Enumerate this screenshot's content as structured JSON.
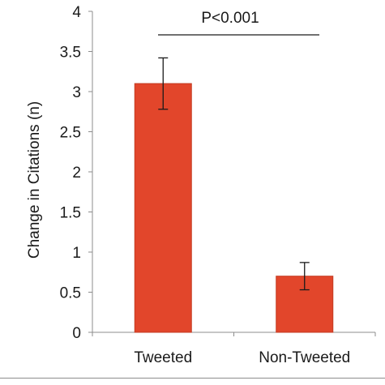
{
  "chart_data": {
    "type": "bar",
    "categories": [
      "Tweeted",
      "Non-Tweeted"
    ],
    "values": [
      3.1,
      0.7
    ],
    "error_low": [
      2.78,
      0.53
    ],
    "error_high": [
      3.42,
      0.87
    ],
    "ylabel": "Change in Citations (n)",
    "xlabel": "",
    "ylim": [
      0,
      4
    ],
    "yticks": [
      0,
      0.5,
      1,
      1.5,
      2,
      2.5,
      3,
      3.5,
      4
    ],
    "ytick_labels": [
      "0",
      "0.5",
      "1",
      "1.5",
      "2",
      "2.5",
      "3",
      "3.5",
      "4"
    ],
    "grid": false,
    "bar_color": "#e2462b",
    "bar_edge_color": "#c33a21",
    "annotation": "P<0.001"
  }
}
